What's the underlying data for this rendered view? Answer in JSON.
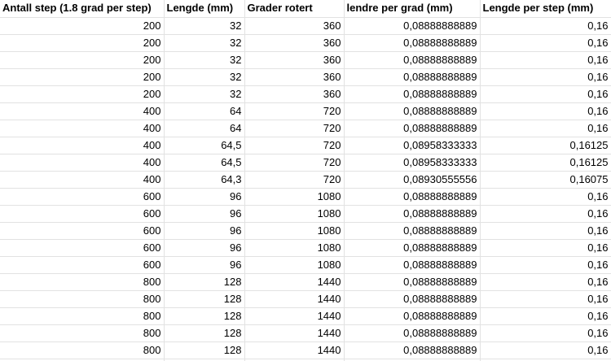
{
  "sheet": {
    "headers": [
      "Antall step (1.8 grad per step)",
      "Lengde (mm)",
      "Grader rotert",
      "lendre per grad (mm)",
      "Lengde per step (mm)"
    ],
    "rows": [
      [
        "200",
        "32",
        "360",
        "0,08888888889",
        "0,16"
      ],
      [
        "200",
        "32",
        "360",
        "0,08888888889",
        "0,16"
      ],
      [
        "200",
        "32",
        "360",
        "0,08888888889",
        "0,16"
      ],
      [
        "200",
        "32",
        "360",
        "0,08888888889",
        "0,16"
      ],
      [
        "200",
        "32",
        "360",
        "0,08888888889",
        "0,16"
      ],
      [
        "400",
        "64",
        "720",
        "0,08888888889",
        "0,16"
      ],
      [
        "400",
        "64",
        "720",
        "0,08888888889",
        "0,16"
      ],
      [
        "400",
        "64,5",
        "720",
        "0,08958333333",
        "0,16125"
      ],
      [
        "400",
        "64,5",
        "720",
        "0,08958333333",
        "0,16125"
      ],
      [
        "400",
        "64,3",
        "720",
        "0,08930555556",
        "0,16075"
      ],
      [
        "600",
        "96",
        "1080",
        "0,08888888889",
        "0,16"
      ],
      [
        "600",
        "96",
        "1080",
        "0,08888888889",
        "0,16"
      ],
      [
        "600",
        "96",
        "1080",
        "0,08888888889",
        "0,16"
      ],
      [
        "600",
        "96",
        "1080",
        "0,08888888889",
        "0,16"
      ],
      [
        "600",
        "96",
        "1080",
        "0,08888888889",
        "0,16"
      ],
      [
        "800",
        "128",
        "1440",
        "0,08888888889",
        "0,16"
      ],
      [
        "800",
        "128",
        "1440",
        "0,08888888889",
        "0,16"
      ],
      [
        "800",
        "128",
        "1440",
        "0,08888888889",
        "0,16"
      ],
      [
        "800",
        "128",
        "1440",
        "0,08888888889",
        "0,16"
      ],
      [
        "800",
        "128",
        "1440",
        "0,08888888889",
        "0,16"
      ]
    ]
  }
}
